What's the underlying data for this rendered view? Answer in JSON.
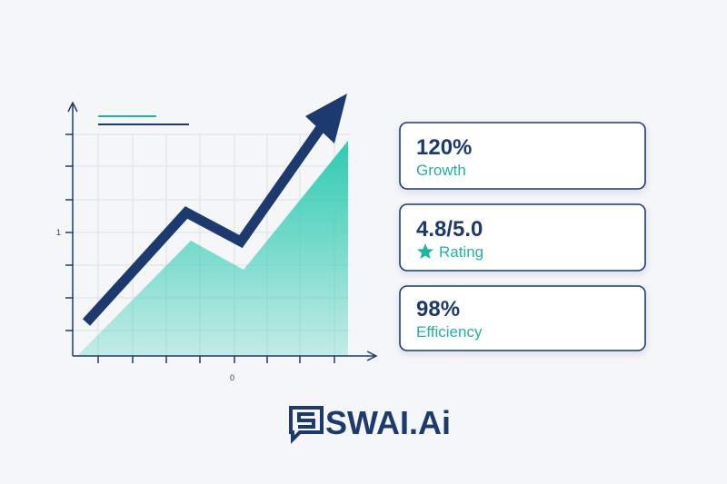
{
  "illustration": {
    "y_axis_label": "1",
    "x_axis_label": "0"
  },
  "cards": [
    {
      "value": "120%",
      "label": "Growth"
    },
    {
      "value": "4.8/5.0",
      "label": "Rating"
    },
    {
      "value": "98%",
      "label": "Efficiency"
    }
  ],
  "logo": {
    "text": "SWAI.Ai"
  }
}
